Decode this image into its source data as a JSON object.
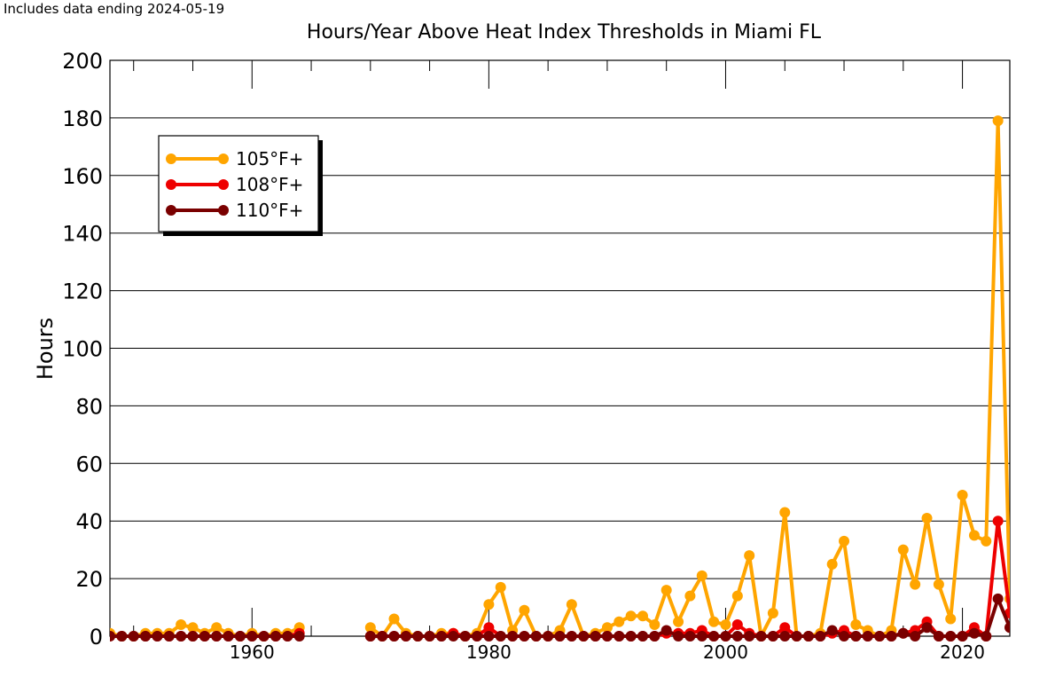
{
  "note": "Includes data ending 2024-05-19",
  "chart_data": {
    "type": "line",
    "title": "Hours/Year Above Heat Index Thresholds in Miami FL",
    "xlabel": "",
    "ylabel": "Hours",
    "xlim": [
      1948,
      2024
    ],
    "ylim": [
      0,
      200
    ],
    "x_ticks": [
      1960,
      1980,
      2000,
      2020
    ],
    "y_ticks": [
      0,
      20,
      40,
      60,
      80,
      100,
      120,
      140,
      160,
      180,
      200
    ],
    "grid": "horizontal",
    "legend_position": "top-left",
    "series": [
      {
        "name": "105°F+",
        "color": "#FFA500",
        "x": [
          1948,
          1949,
          1950,
          1951,
          1952,
          1953,
          1954,
          1955,
          1956,
          1957,
          1958,
          1959,
          1960,
          1961,
          1962,
          1963,
          1964,
          null,
          1970,
          1971,
          1972,
          1973,
          1974,
          1975,
          1976,
          1977,
          1978,
          1979,
          1980,
          1981,
          1982,
          1983,
          1984,
          1985,
          1986,
          1987,
          1988,
          1989,
          1990,
          1991,
          1992,
          1993,
          1994,
          1995,
          1996,
          1997,
          1998,
          1999,
          2000,
          2001,
          2002,
          2003,
          2004,
          2005,
          2006,
          2007,
          2008,
          2009,
          2010,
          2011,
          2012,
          2013,
          2014,
          2015,
          2016,
          2017,
          2018,
          2019,
          2020,
          2021,
          2022,
          2023,
          2024
        ],
        "values": [
          1,
          0,
          0,
          1,
          1,
          1,
          4,
          3,
          1,
          3,
          1,
          0,
          1,
          0,
          1,
          1,
          3,
          null,
          3,
          0,
          6,
          1,
          0,
          0,
          1,
          1,
          0,
          1,
          11,
          17,
          2,
          9,
          0,
          0,
          2,
          11,
          0,
          1,
          3,
          5,
          7,
          7,
          4,
          16,
          5,
          14,
          21,
          5,
          4,
          14,
          28,
          0,
          8,
          43,
          0,
          0,
          1,
          25,
          33,
          4,
          2,
          0,
          2,
          30,
          18,
          41,
          18,
          6,
          49,
          35,
          33,
          179,
          13
        ]
      },
      {
        "name": "108°F+",
        "color": "#EE0000",
        "x": [
          1948,
          1949,
          1950,
          1951,
          1952,
          1953,
          1954,
          1955,
          1956,
          1957,
          1958,
          1959,
          1960,
          1961,
          1962,
          1963,
          1964,
          null,
          1970,
          1971,
          1972,
          1973,
          1974,
          1975,
          1976,
          1977,
          1978,
          1979,
          1980,
          1981,
          1982,
          1983,
          1984,
          1985,
          1986,
          1987,
          1988,
          1989,
          1990,
          1991,
          1992,
          1993,
          1994,
          1995,
          1996,
          1997,
          1998,
          1999,
          2000,
          2001,
          2002,
          2003,
          2004,
          2005,
          2006,
          2007,
          2008,
          2009,
          2010,
          2011,
          2012,
          2013,
          2014,
          2015,
          2016,
          2017,
          2018,
          2019,
          2020,
          2021,
          2022,
          2023,
          2024
        ],
        "values": [
          0,
          0,
          0,
          0,
          0,
          0,
          0,
          0,
          0,
          0,
          0,
          0,
          0,
          0,
          0,
          0,
          1,
          null,
          0,
          0,
          0,
          0,
          0,
          0,
          0,
          1,
          0,
          0,
          3,
          0,
          0,
          0,
          0,
          0,
          0,
          0,
          0,
          0,
          0,
          0,
          0,
          0,
          0,
          1,
          1,
          1,
          2,
          0,
          0,
          4,
          1,
          0,
          0,
          3,
          0,
          0,
          0,
          1,
          2,
          0,
          0,
          0,
          0,
          1,
          2,
          5,
          0,
          0,
          0,
          3,
          0,
          40,
          8
        ]
      },
      {
        "name": "110°F+",
        "color": "#7A0000",
        "x": [
          1948,
          1949,
          1950,
          1951,
          1952,
          1953,
          1954,
          1955,
          1956,
          1957,
          1958,
          1959,
          1960,
          1961,
          1962,
          1963,
          1964,
          null,
          1970,
          1971,
          1972,
          1973,
          1974,
          1975,
          1976,
          1977,
          1978,
          1979,
          1980,
          1981,
          1982,
          1983,
          1984,
          1985,
          1986,
          1987,
          1988,
          1989,
          1990,
          1991,
          1992,
          1993,
          1994,
          1995,
          1996,
          1997,
          1998,
          1999,
          2000,
          2001,
          2002,
          2003,
          2004,
          2005,
          2006,
          2007,
          2008,
          2009,
          2010,
          2011,
          2012,
          2013,
          2014,
          2015,
          2016,
          2017,
          2018,
          2019,
          2020,
          2021,
          2022,
          2023,
          2024
        ],
        "values": [
          0,
          0,
          0,
          0,
          0,
          0,
          0,
          0,
          0,
          0,
          0,
          0,
          0,
          0,
          0,
          0,
          0,
          null,
          0,
          0,
          0,
          0,
          0,
          0,
          0,
          0,
          0,
          0,
          0,
          0,
          0,
          0,
          0,
          0,
          0,
          0,
          0,
          0,
          0,
          0,
          0,
          0,
          0,
          2,
          0,
          0,
          0,
          0,
          0,
          0,
          0,
          0,
          0,
          0,
          0,
          0,
          0,
          2,
          0,
          0,
          0,
          0,
          0,
          1,
          0,
          3,
          0,
          0,
          0,
          1,
          0,
          13,
          3
        ]
      }
    ]
  }
}
